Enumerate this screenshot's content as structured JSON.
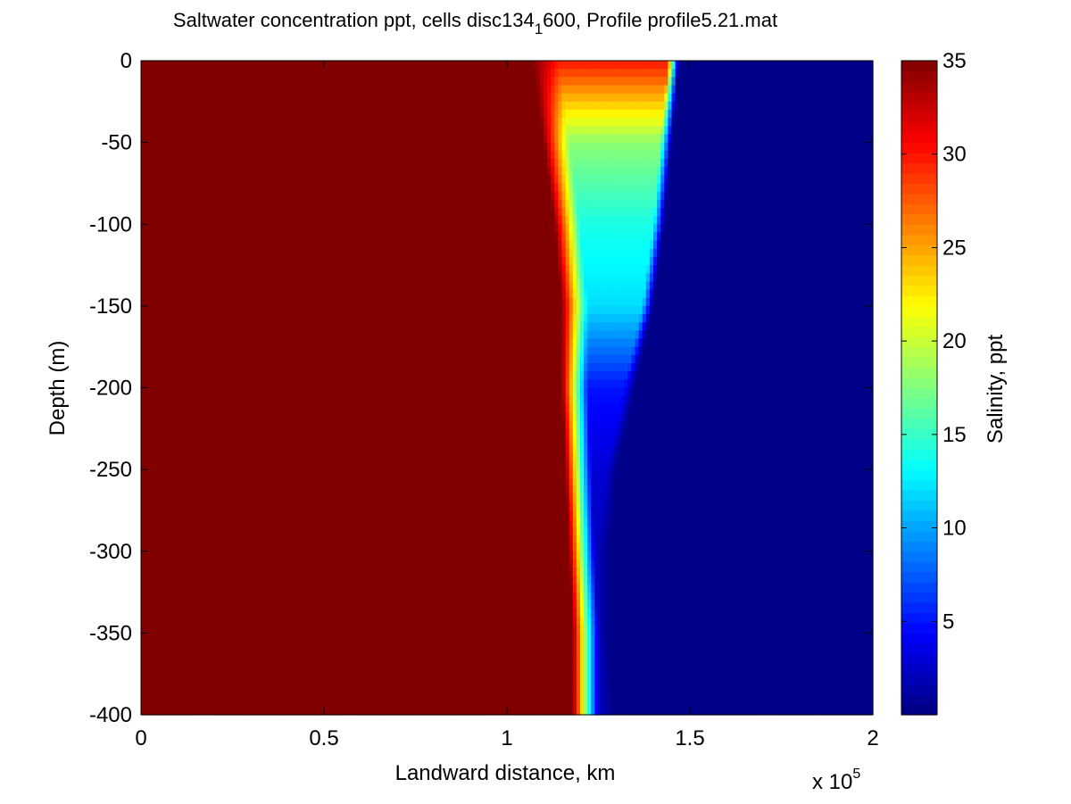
{
  "title": {
    "part1": "Saltwater concentration ppt, cells disc134",
    "subscript": "1",
    "part2": "600, Profile profile5.21.mat"
  },
  "chart_data": {
    "type": "heatmap",
    "xlabel": "Landward distance, km",
    "ylabel": "Depth (m)",
    "x_exponent_label": "x 10",
    "x_exponent_power": "5",
    "xlim": [
      0,
      200000
    ],
    "ylim": [
      -400,
      0
    ],
    "x_ticks": [
      0,
      50000,
      100000,
      150000,
      200000
    ],
    "x_tick_labels": [
      "0",
      "0.5",
      "1",
      "1.5",
      "2"
    ],
    "y_ticks": [
      0,
      -50,
      -100,
      -150,
      -200,
      -250,
      -300,
      -350,
      -400
    ],
    "y_tick_labels": [
      "0",
      "-50",
      "-100",
      "-150",
      "-200",
      "-250",
      "-300",
      "-350",
      "-400"
    ],
    "colorbar": {
      "label": "Salinity, ppt",
      "colormap": "jet",
      "range": [
        0,
        35
      ],
      "ticks": [
        35,
        30,
        25,
        20,
        15,
        10,
        5
      ],
      "tick_labels": [
        "35",
        "30",
        "25",
        "20",
        "15",
        "10",
        "5"
      ]
    },
    "field_description": {
      "saltwater_value": 35,
      "freshwater_value": 0,
      "depths": [
        0,
        -50,
        -100,
        -150,
        -200,
        -250,
        -300,
        -350,
        -400
      ],
      "salt_edge_x": [
        107000,
        110000,
        113000,
        115000,
        115000,
        116000,
        117000,
        118000,
        118000
      ],
      "fresh_edge_x": [
        147000,
        145000,
        143000,
        140000,
        135000,
        130000,
        128000,
        128000,
        129000
      ],
      "interior_salinity": [
        30,
        18,
        14,
        12,
        5,
        3,
        2,
        2,
        2
      ]
    }
  }
}
